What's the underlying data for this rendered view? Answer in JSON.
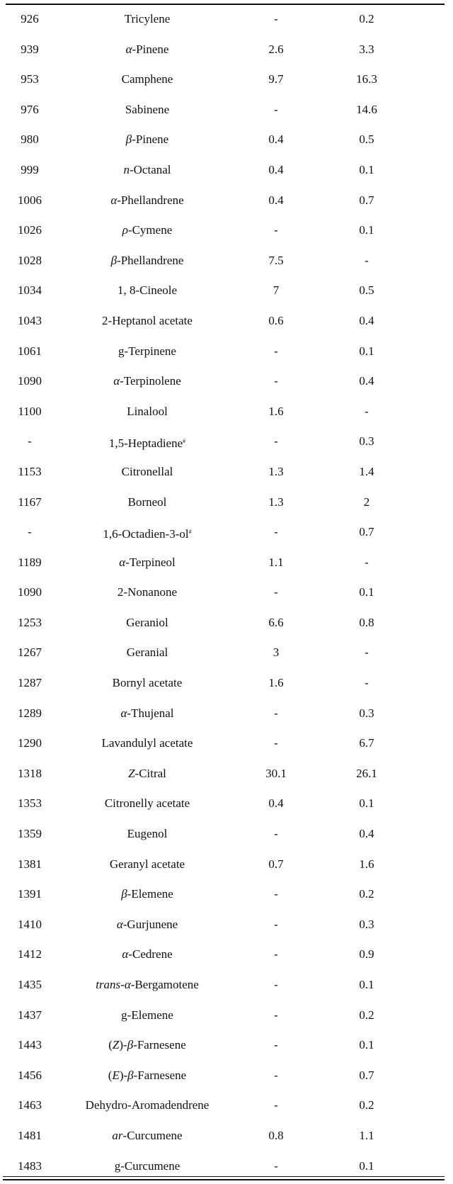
{
  "table": {
    "rows": [
      {
        "ri": "926",
        "name": [
          {
            "t": "Tricylene"
          }
        ],
        "a": "-",
        "b": "0.2"
      },
      {
        "ri": "939",
        "name": [
          {
            "t": "α",
            "i": true
          },
          {
            "t": "-Pinene"
          }
        ],
        "a": "2.6",
        "b": "3.3"
      },
      {
        "ri": "953",
        "name": [
          {
            "t": "Camphene"
          }
        ],
        "a": "9.7",
        "b": "16.3"
      },
      {
        "ri": "976",
        "name": [
          {
            "t": "Sabinene"
          }
        ],
        "a": "-",
        "b": "14.6"
      },
      {
        "ri": "980",
        "name": [
          {
            "t": "β",
            "i": true
          },
          {
            "t": "-Pinene"
          }
        ],
        "a": "0.4",
        "b": "0.5"
      },
      {
        "ri": "999",
        "name": [
          {
            "t": "n",
            "i": true
          },
          {
            "t": "-Octanal"
          }
        ],
        "a": "0.4",
        "b": "0.1"
      },
      {
        "ri": "1006",
        "name": [
          {
            "t": "α",
            "i": true
          },
          {
            "t": "-Phellandrene"
          }
        ],
        "a": "0.4",
        "b": "0.7"
      },
      {
        "ri": "1026",
        "name": [
          {
            "t": "ρ",
            "i": true
          },
          {
            "t": "-Cymene"
          }
        ],
        "a": "-",
        "b": "0.1"
      },
      {
        "ri": "1028",
        "name": [
          {
            "t": "β",
            "i": true
          },
          {
            "t": "-Phellandrene"
          }
        ],
        "a": "7.5",
        "b": "-"
      },
      {
        "ri": "1034",
        "name": [
          {
            "t": "1, 8-Cineole"
          }
        ],
        "a": "7",
        "b": "0.5"
      },
      {
        "ri": "1043",
        "name": [
          {
            "t": "2-Heptanol acetate"
          }
        ],
        "a": "0.6",
        "b": "0.4"
      },
      {
        "ri": "1061",
        "name": [
          {
            "t": "g-Terpinene"
          }
        ],
        "a": "-",
        "b": "0.1"
      },
      {
        "ri": "1090",
        "name": [
          {
            "t": "α",
            "i": true
          },
          {
            "t": "-Terpinolene"
          }
        ],
        "a": "-",
        "b": "0.4"
      },
      {
        "ri": "1100",
        "name": [
          {
            "t": "Linalool"
          }
        ],
        "a": "1.6",
        "b": "-"
      },
      {
        "ri": "-",
        "name": [
          {
            "t": "1,5-Heptadiene"
          },
          {
            "t": "#",
            "sup": true
          }
        ],
        "a": "-",
        "b": "0.3"
      },
      {
        "ri": "1153",
        "name": [
          {
            "t": "Citronellal"
          }
        ],
        "a": "1.3",
        "b": "1.4"
      },
      {
        "ri": "1167",
        "name": [
          {
            "t": "Borneol"
          }
        ],
        "a": "1.3",
        "b": "2"
      },
      {
        "ri": "-",
        "name": [
          {
            "t": "1,6-Octadien-3-ol"
          },
          {
            "t": "#",
            "sup": true
          }
        ],
        "a": "-",
        "b": "0.7"
      },
      {
        "ri": "1189",
        "name": [
          {
            "t": "α",
            "i": true
          },
          {
            "t": "-Terpineol"
          }
        ],
        "a": "1.1",
        "b": "-"
      },
      {
        "ri": "1090",
        "name": [
          {
            "t": "2-Nonanone"
          }
        ],
        "a": "-",
        "b": "0.1"
      },
      {
        "ri": "1253",
        "name": [
          {
            "t": "Geraniol"
          }
        ],
        "a": "6.6",
        "b": "0.8"
      },
      {
        "ri": "1267",
        "name": [
          {
            "t": "Geranial"
          }
        ],
        "a": "3",
        "b": "-"
      },
      {
        "ri": "1287",
        "name": [
          {
            "t": "Bornyl acetate"
          }
        ],
        "a": "1.6",
        "b": "-"
      },
      {
        "ri": "1289",
        "name": [
          {
            "t": "α",
            "i": true
          },
          {
            "t": "-Thujenal"
          }
        ],
        "a": "-",
        "b": "0.3"
      },
      {
        "ri": "1290",
        "name": [
          {
            "t": "Lavandulyl acetate"
          }
        ],
        "a": "-",
        "b": "6.7"
      },
      {
        "ri": "1318",
        "name": [
          {
            "t": "Z",
            "i": true
          },
          {
            "t": "-Citral"
          }
        ],
        "a": "30.1",
        "b": "26.1"
      },
      {
        "ri": "1353",
        "name": [
          {
            "t": "Citronelly acetate"
          }
        ],
        "a": "0.4",
        "b": "0.1"
      },
      {
        "ri": "1359",
        "name": [
          {
            "t": "Eugenol"
          }
        ],
        "a": "-",
        "b": "0.4"
      },
      {
        "ri": "1381",
        "name": [
          {
            "t": "Geranyl acetate"
          }
        ],
        "a": "0.7",
        "b": "1.6"
      },
      {
        "ri": "1391",
        "name": [
          {
            "t": "β",
            "i": true
          },
          {
            "t": "-Elemene"
          }
        ],
        "a": "-",
        "b": "0.2"
      },
      {
        "ri": "1410",
        "name": [
          {
            "t": "α",
            "i": true
          },
          {
            "t": "-Gurjunene"
          }
        ],
        "a": "-",
        "b": "0.3"
      },
      {
        "ri": "1412",
        "name": [
          {
            "t": "α",
            "i": true
          },
          {
            "t": "-Cedrene"
          }
        ],
        "a": "-",
        "b": "0.9"
      },
      {
        "ri": "1435",
        "name": [
          {
            "t": "trans",
            "i": true
          },
          {
            "t": "-"
          },
          {
            "t": "α",
            "i": true
          },
          {
            "t": "-Bergamotene"
          }
        ],
        "a": "-",
        "b": "0.1"
      },
      {
        "ri": "1437",
        "name": [
          {
            "t": "g-Elemene"
          }
        ],
        "a": "-",
        "b": "0.2"
      },
      {
        "ri": "1443",
        "name": [
          {
            "t": "("
          },
          {
            "t": "Z",
            "i": true
          },
          {
            "t": ")-"
          },
          {
            "t": "β",
            "i": true
          },
          {
            "t": "-Farnesene"
          }
        ],
        "a": "-",
        "b": "0.1"
      },
      {
        "ri": "1456",
        "name": [
          {
            "t": "("
          },
          {
            "t": "E",
            "i": true
          },
          {
            "t": ")-"
          },
          {
            "t": "β",
            "i": true
          },
          {
            "t": "-Farnesene"
          }
        ],
        "a": "-",
        "b": "0.7"
      },
      {
        "ri": "1463",
        "name": [
          {
            "t": "Dehydro-Aromadendrene"
          }
        ],
        "a": "-",
        "b": "0.2"
      },
      {
        "ri": "1481",
        "name": [
          {
            "t": "ar",
            "i": true
          },
          {
            "t": "-Curcumene"
          }
        ],
        "a": "0.8",
        "b": "1.1"
      },
      {
        "ri": "1483",
        "name": [
          {
            "t": "g-Curcumene"
          }
        ],
        "a": "-",
        "b": "0.1"
      }
    ]
  }
}
